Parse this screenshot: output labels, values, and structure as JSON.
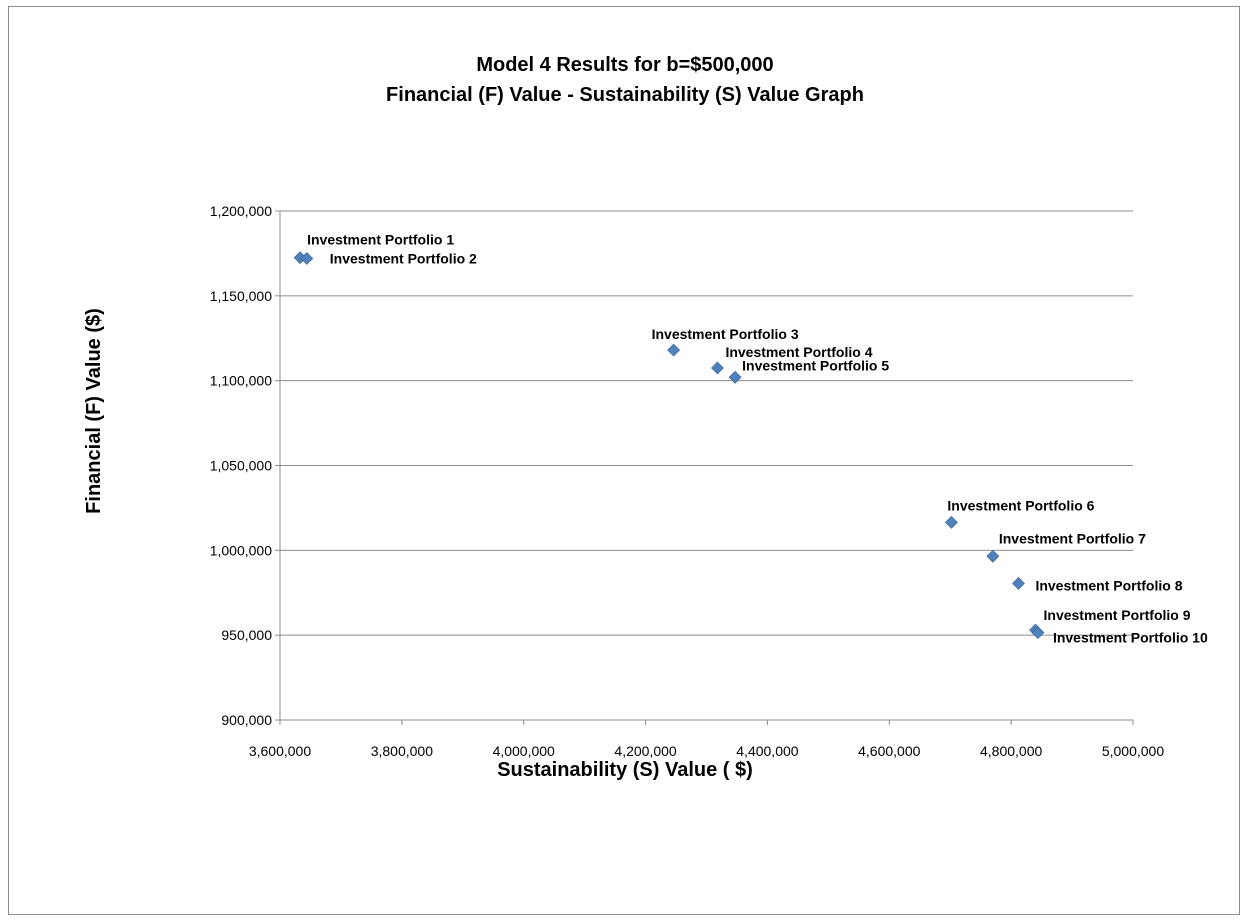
{
  "chart_data": {
    "type": "scatter",
    "title": [
      "Model 4 Results for b=$500,000",
      "Financial (F) Value - Sustainability (S) Value Graph"
    ],
    "xlabel": "Sustainability (S) Value ( $)",
    "ylabel": "Financial (F) Value ($)",
    "xlim": [
      3600000,
      5000000
    ],
    "ylim": [
      900000,
      1200000
    ],
    "x_ticks": [
      "3,600,000",
      "3,800,000",
      "4,000,000",
      "4,200,000",
      "4,400,000",
      "4,600,000",
      "4,800,000",
      "5,000,000"
    ],
    "y_ticks": [
      "900,000",
      "950,000",
      "1,000,000",
      "1,050,000",
      "1,100,000",
      "1,150,000",
      "1,200,000"
    ],
    "grid": "horizontal",
    "legend": "none",
    "marker_color": "#4f81bd",
    "points": [
      {
        "x": 3633000,
        "y": 1172500,
        "label": "Investment Portfolio 1"
      },
      {
        "x": 3644000,
        "y": 1172000,
        "label": "Investment Portfolio 2"
      },
      {
        "x": 4246000,
        "y": 1118000,
        "label": "Investment Portfolio 3"
      },
      {
        "x": 4318000,
        "y": 1107500,
        "label": "Investment Portfolio 4"
      },
      {
        "x": 4347000,
        "y": 1102000,
        "label": "Investment Portfolio 5"
      },
      {
        "x": 4702000,
        "y": 1016500,
        "label": "Investment Portfolio 6"
      },
      {
        "x": 4770000,
        "y": 996500,
        "label": "Investment Portfolio 7"
      },
      {
        "x": 4812000,
        "y": 980500,
        "label": "Investment Portfolio 8"
      },
      {
        "x": 4840000,
        "y": 953000,
        "label": "Investment Portfolio 9"
      },
      {
        "x": 4844000,
        "y": 951500,
        "label": "Investment Portfolio 10"
      }
    ]
  }
}
